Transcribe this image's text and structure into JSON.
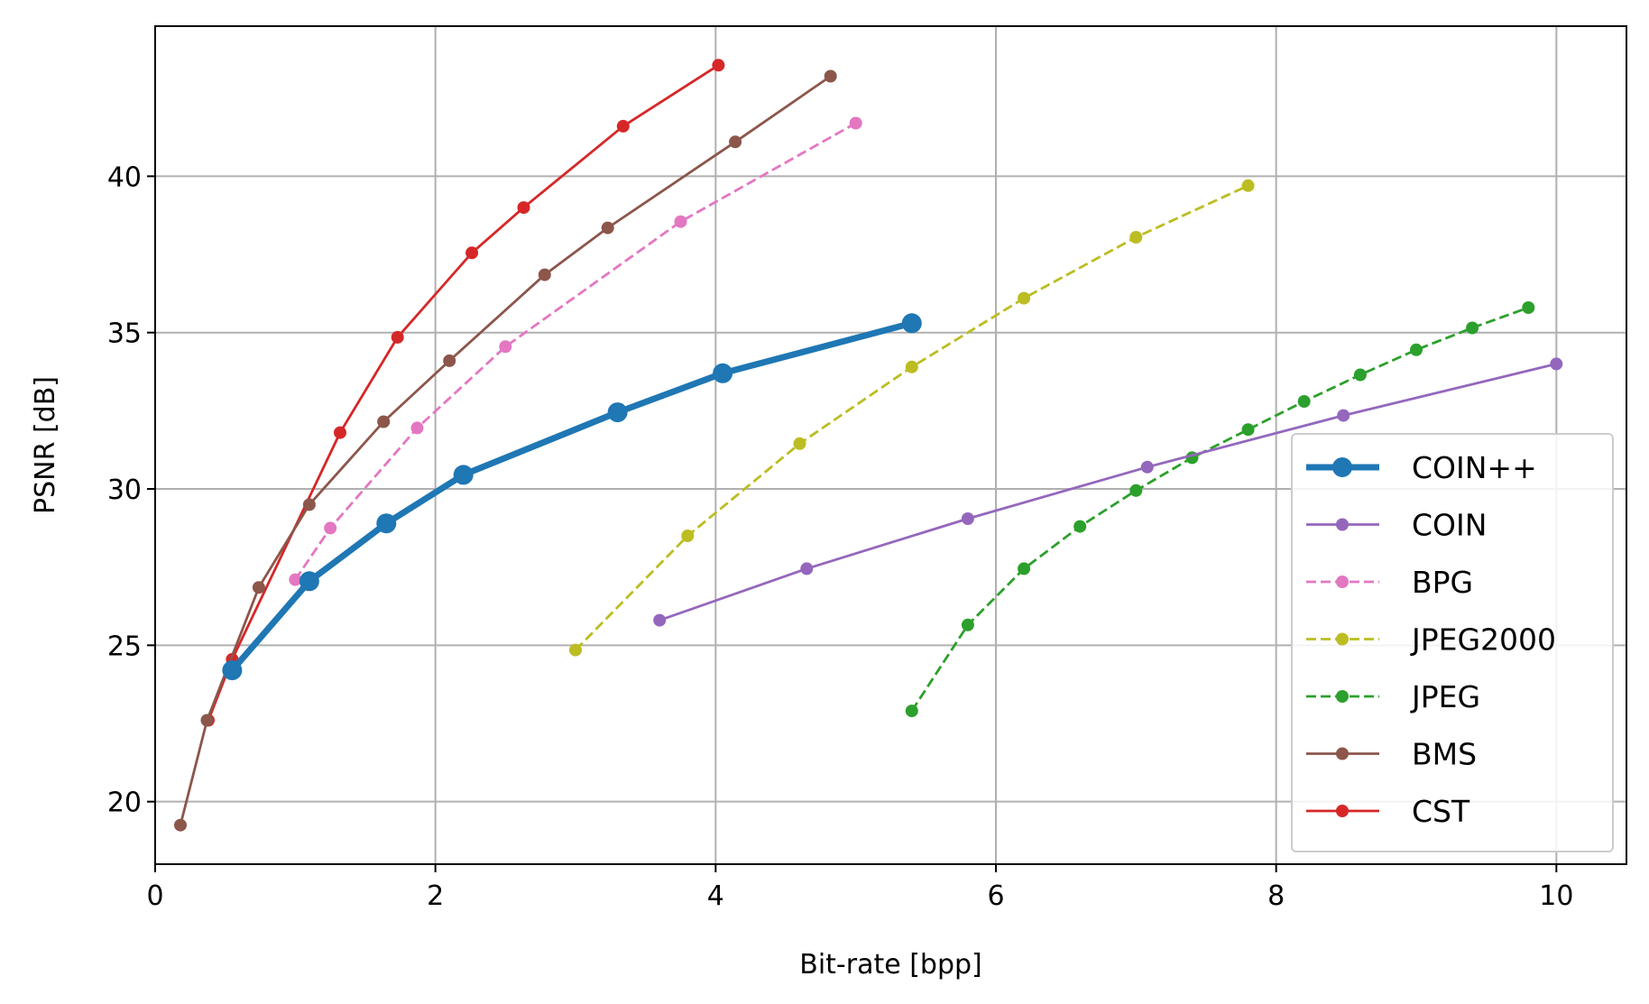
{
  "chart_data": {
    "type": "line",
    "xlabel": "Bit-rate [bpp]",
    "ylabel": "PSNR [dB]",
    "xlim": [
      0,
      10.5
    ],
    "ylim": [
      18,
      44.8
    ],
    "xticks": [
      0,
      2,
      4,
      6,
      8,
      10
    ],
    "yticks": [
      20,
      25,
      30,
      35,
      40
    ],
    "grid": true,
    "legend_position": "lower-right",
    "series": [
      {
        "name": "COIN++",
        "color": "#1f77b4",
        "style": "solid",
        "emphasis": true,
        "x": [
          0.55,
          1.1,
          1.65,
          2.2,
          3.3,
          4.05,
          5.4
        ],
        "y": [
          24.2,
          27.05,
          28.9,
          30.45,
          32.45,
          33.7,
          35.3
        ]
      },
      {
        "name": "COIN",
        "color": "#9467bd",
        "style": "solid",
        "x": [
          3.6,
          4.65,
          5.8,
          7.08,
          8.48,
          10.0
        ],
        "y": [
          25.8,
          27.45,
          29.05,
          30.7,
          32.35,
          34.0
        ]
      },
      {
        "name": "BPG",
        "color": "#e377c2",
        "style": "dashed",
        "x": [
          1.0,
          1.25,
          1.87,
          2.5,
          3.75,
          5.0
        ],
        "y": [
          27.1,
          28.75,
          31.95,
          34.55,
          38.55,
          41.7
        ]
      },
      {
        "name": "JPEG2000",
        "color": "#bcbd22",
        "style": "dashed",
        "x": [
          3.0,
          3.8,
          4.6,
          5.4,
          6.2,
          7.0,
          7.8
        ],
        "y": [
          24.85,
          28.5,
          31.45,
          33.9,
          36.1,
          38.05,
          39.7
        ]
      },
      {
        "name": "JPEG",
        "color": "#2ca02c",
        "style": "dashed",
        "x": [
          5.4,
          5.8,
          6.2,
          6.6,
          7.0,
          7.4,
          7.8,
          8.2,
          8.6,
          9.0,
          9.4,
          9.8
        ],
        "y": [
          22.9,
          25.65,
          27.45,
          28.8,
          29.95,
          31.0,
          31.9,
          32.8,
          33.65,
          34.45,
          35.15,
          35.8
        ]
      },
      {
        "name": "BMS",
        "color": "#8c564b",
        "style": "solid",
        "x": [
          0.18,
          0.37,
          0.74,
          1.1,
          1.63,
          2.1,
          2.78,
          3.23,
          4.14,
          4.82
        ],
        "y": [
          19.25,
          22.6,
          26.85,
          29.5,
          32.15,
          34.1,
          36.85,
          38.35,
          41.1,
          43.2
        ]
      },
      {
        "name": "CST",
        "color": "#d62728",
        "style": "solid",
        "x": [
          0.38,
          0.55,
          1.32,
          1.73,
          2.26,
          2.63,
          3.34,
          4.02
        ],
        "y": [
          22.6,
          24.55,
          31.8,
          34.85,
          37.55,
          39.0,
          41.6,
          43.55
        ]
      }
    ]
  }
}
